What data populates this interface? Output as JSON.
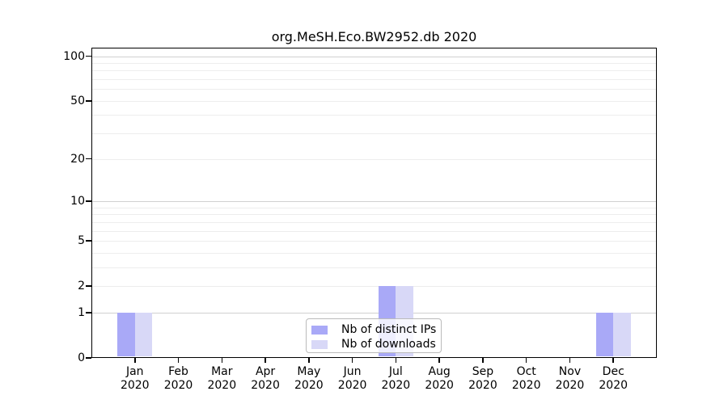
{
  "chart_data": {
    "type": "bar",
    "title": "org.MeSH.Eco.BW2952.db 2020",
    "categories": [
      "Jan 2020",
      "Feb 2020",
      "Mar 2020",
      "Apr 2020",
      "May 2020",
      "Jun 2020",
      "Jul 2020",
      "Aug 2020",
      "Sep 2020",
      "Oct 2020",
      "Nov 2020",
      "Dec 2020"
    ],
    "series": [
      {
        "name": "Nb of distinct IPs",
        "color": "#a9a9f7",
        "values": [
          1,
          0,
          0,
          0,
          0,
          0,
          2,
          0,
          0,
          0,
          0,
          1
        ]
      },
      {
        "name": "Nb of downloads",
        "color": "#d8d8f7",
        "values": [
          1,
          0,
          0,
          0,
          0,
          0,
          2,
          0,
          0,
          0,
          0,
          1
        ]
      }
    ],
    "xlabel": "",
    "ylabel": "",
    "y_scale": "log1p",
    "ylim": [
      0,
      114
    ],
    "y_tick_values": [
      0,
      1,
      2,
      5,
      10,
      20,
      50,
      100
    ],
    "grid": {
      "major_values": [
        1,
        10,
        100
      ],
      "minor_values": [
        2,
        3,
        4,
        5,
        6,
        7,
        8,
        9,
        20,
        30,
        40,
        50,
        60,
        70,
        80,
        90
      ],
      "major_color": "#d0d0d0",
      "minor_color": "#ededed"
    },
    "legend_position": "bottom-center"
  },
  "colors": {
    "background": "#ffffff",
    "axis": "#000000",
    "text": "#000000",
    "legend_border": "#bbbbbb"
  }
}
